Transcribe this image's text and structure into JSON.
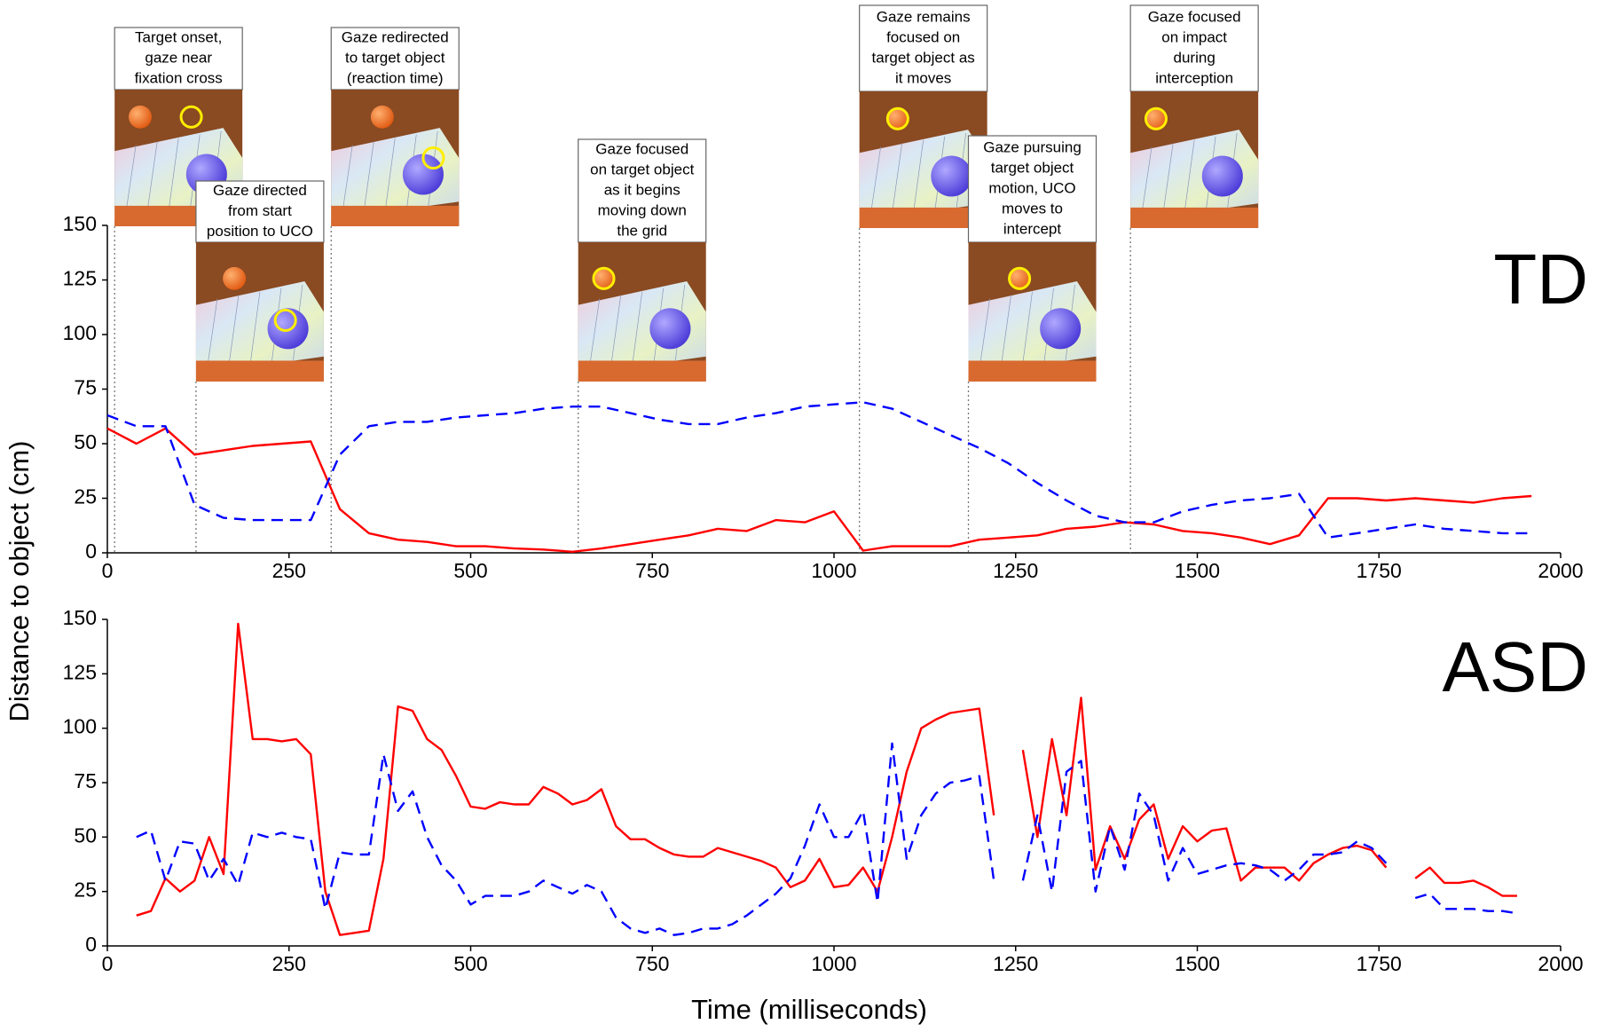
{
  "ylabel": "Distance to object (cm)",
  "xlabel": "Time (milliseconds)",
  "chart_data": [
    {
      "type": "line",
      "panel_label": "TD",
      "x": [
        0,
        40,
        80,
        120,
        160,
        200,
        240,
        280,
        320,
        360,
        400,
        440,
        480,
        520,
        560,
        600,
        640,
        680,
        720,
        760,
        800,
        840,
        880,
        920,
        960,
        1000,
        1040,
        1080,
        1120,
        1160,
        1200,
        1240,
        1280,
        1320,
        1360,
        1400,
        1440,
        1480,
        1520,
        1560,
        1600,
        1640,
        1680,
        1720,
        1760,
        1800,
        1840,
        1880,
        1920,
        1960
      ],
      "series": [
        {
          "color": "#ff0000",
          "dash": false,
          "values": [
            57,
            50,
            57,
            45,
            47,
            49,
            50,
            51,
            20,
            9,
            6,
            5,
            3,
            3,
            2,
            1.5,
            0.5,
            2,
            4,
            6,
            8,
            11,
            10,
            15,
            14,
            19,
            1,
            3,
            3,
            3,
            6,
            7,
            8,
            11,
            12,
            14,
            13,
            10,
            9,
            7,
            4,
            8,
            25,
            25,
            24,
            25,
            24,
            23,
            25,
            26
          ]
        },
        {
          "color": "#0000ff",
          "dash": true,
          "values": [
            63,
            58,
            58,
            22,
            16,
            15,
            15,
            15,
            45,
            58,
            60,
            60,
            62,
            63,
            64,
            66,
            67,
            67,
            64,
            61,
            59,
            59,
            62,
            64,
            67,
            68,
            69,
            66,
            60,
            54,
            48,
            41,
            32,
            24,
            17,
            14,
            14,
            19,
            22,
            24,
            25,
            27,
            7,
            9,
            11,
            13,
            11,
            10,
            9,
            9
          ]
        }
      ],
      "xlim": [
        0,
        2000
      ],
      "xticks": [
        0,
        250,
        500,
        750,
        1000,
        1250,
        1500,
        1750,
        2000
      ],
      "ylim": [
        0,
        150
      ],
      "yticks": [
        0,
        25,
        50,
        75,
        100,
        125,
        150
      ],
      "annotations": [
        {
          "x": 10,
          "text": [
            "Target onset,",
            "gaze near",
            "fixation cross"
          ]
        },
        {
          "x": 122,
          "text": [
            "Gaze directed",
            "from start",
            "position to UCO"
          ]
        },
        {
          "x": 308,
          "text": [
            "Gaze redirected",
            "to target object",
            "(reaction time)"
          ]
        },
        {
          "x": 648,
          "text": [
            "Gaze focused",
            "on target object",
            "as it begins",
            "moving down",
            "the grid"
          ]
        },
        {
          "x": 1035,
          "text": [
            "Gaze remains",
            "focused on",
            "target object as",
            "it moves"
          ]
        },
        {
          "x": 1185,
          "text": [
            "Gaze pursuing",
            "target object",
            "motion, UCO",
            "moves to",
            "intercept"
          ]
        },
        {
          "x": 1408,
          "text": [
            "Gaze focused",
            "on impact",
            "during",
            "interception"
          ]
        }
      ]
    },
    {
      "type": "line",
      "panel_label": "ASD",
      "x": [
        40,
        60,
        80,
        100,
        120,
        140,
        160,
        180,
        200,
        220,
        240,
        260,
        280,
        300,
        320,
        340,
        360,
        380,
        400,
        420,
        440,
        460,
        480,
        500,
        520,
        540,
        560,
        580,
        600,
        620,
        640,
        660,
        680,
        700,
        720,
        740,
        760,
        780,
        800,
        820,
        840,
        860,
        880,
        900,
        920,
        940,
        960,
        980,
        1000,
        1020,
        1040,
        1060,
        1080,
        1100,
        1120,
        1140,
        1160,
        1180,
        1200,
        1220,
        1240,
        1260,
        1280,
        1300,
        1320,
        1340,
        1360,
        1380,
        1400,
        1420,
        1440,
        1460,
        1480,
        1500,
        1520,
        1540,
        1560,
        1580,
        1600,
        1620,
        1640,
        1660,
        1680,
        1700,
        1720,
        1740,
        1760,
        1780,
        1800,
        1820,
        1840,
        1860,
        1880,
        1900,
        1920,
        1940
      ],
      "series": [
        {
          "color": "#ff0000",
          "dash": false,
          "values": [
            14,
            16,
            31,
            25,
            30,
            50,
            33,
            148,
            95,
            95,
            94,
            95,
            88,
            25,
            5,
            6,
            7,
            40,
            110,
            108,
            95,
            90,
            78,
            64,
            63,
            66,
            65,
            65,
            73,
            70,
            65,
            67,
            72,
            55,
            49,
            49,
            45,
            42,
            41,
            41,
            45,
            43,
            41,
            39,
            36,
            27,
            30,
            40,
            27,
            28,
            36,
            25,
            50,
            80,
            100,
            104,
            107,
            108,
            109,
            60,
            null,
            90,
            50,
            95,
            60,
            114,
            35,
            55,
            40,
            58,
            65,
            40,
            55,
            48,
            53,
            54,
            30,
            36,
            36,
            36,
            30,
            38,
            42,
            45,
            46,
            44,
            36,
            null,
            31,
            36,
            29,
            29,
            30,
            27,
            23,
            23
          ]
        },
        {
          "color": "#0000ff",
          "dash": true,
          "values": [
            50,
            53,
            30,
            48,
            47,
            30,
            40,
            28,
            52,
            50,
            52,
            50,
            49,
            17,
            43,
            42,
            42,
            88,
            62,
            71,
            50,
            37,
            30,
            19,
            23,
            23,
            23,
            25,
            30,
            27,
            24,
            28,
            25,
            13,
            8,
            6,
            8,
            5,
            6,
            8,
            8,
            10,
            14,
            19,
            24,
            31,
            46,
            65,
            50,
            50,
            62,
            20,
            93,
            40,
            60,
            70,
            75,
            76,
            78,
            30,
            null,
            30,
            60,
            25,
            80,
            85,
            25,
            55,
            35,
            70,
            60,
            30,
            45,
            33,
            35,
            37,
            38,
            37,
            35,
            30,
            35,
            42,
            42,
            43,
            48,
            45,
            38,
            null,
            22,
            24,
            17,
            17,
            17,
            16,
            16,
            15
          ]
        }
      ],
      "xlim": [
        0,
        2000
      ],
      "xticks": [
        0,
        250,
        500,
        750,
        1000,
        1250,
        1500,
        1750,
        2000
      ],
      "ylim": [
        0,
        150
      ],
      "yticks": [
        0,
        25,
        50,
        75,
        100,
        125,
        150
      ]
    }
  ]
}
